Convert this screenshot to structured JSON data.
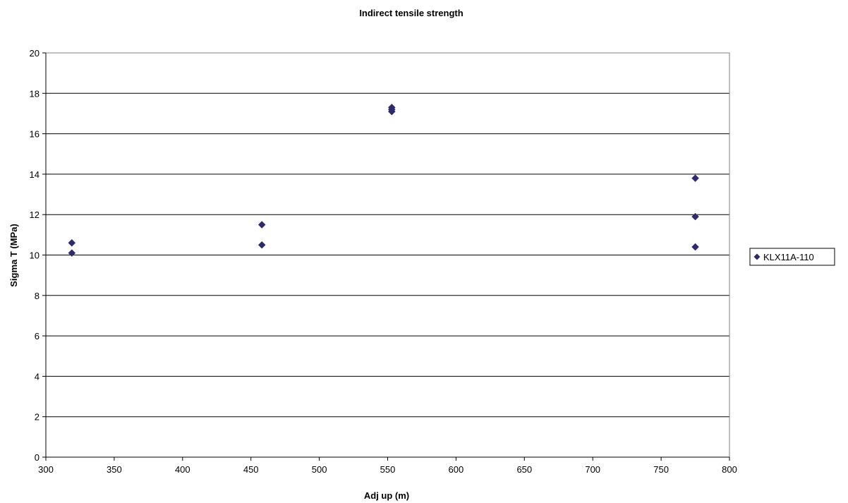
{
  "chart_data": {
    "type": "scatter",
    "title": "Indirect tensile strength",
    "xlabel": "Adj up (m)",
    "ylabel": "Sigma T (MPa)",
    "xlim": [
      300,
      800
    ],
    "ylim": [
      0,
      20
    ],
    "x_ticks": [
      300,
      350,
      400,
      450,
      500,
      550,
      600,
      650,
      700,
      750,
      800
    ],
    "y_ticks": [
      0,
      2,
      4,
      6,
      8,
      10,
      12,
      14,
      16,
      18,
      20
    ],
    "grid": "horizontal major gridlines",
    "legend_position": "right",
    "series": [
      {
        "name": "KLX11A-110",
        "color": "#2e2a6e",
        "marker": "diamond",
        "points": [
          {
            "x": 319,
            "y": 10.6
          },
          {
            "x": 319,
            "y": 10.1
          },
          {
            "x": 458,
            "y": 11.5
          },
          {
            "x": 458,
            "y": 10.5
          },
          {
            "x": 553,
            "y": 17.3
          },
          {
            "x": 553,
            "y": 17.2
          },
          {
            "x": 553,
            "y": 17.1
          },
          {
            "x": 775,
            "y": 13.8
          },
          {
            "x": 775,
            "y": 11.9
          },
          {
            "x": 775,
            "y": 10.4
          }
        ]
      }
    ]
  }
}
